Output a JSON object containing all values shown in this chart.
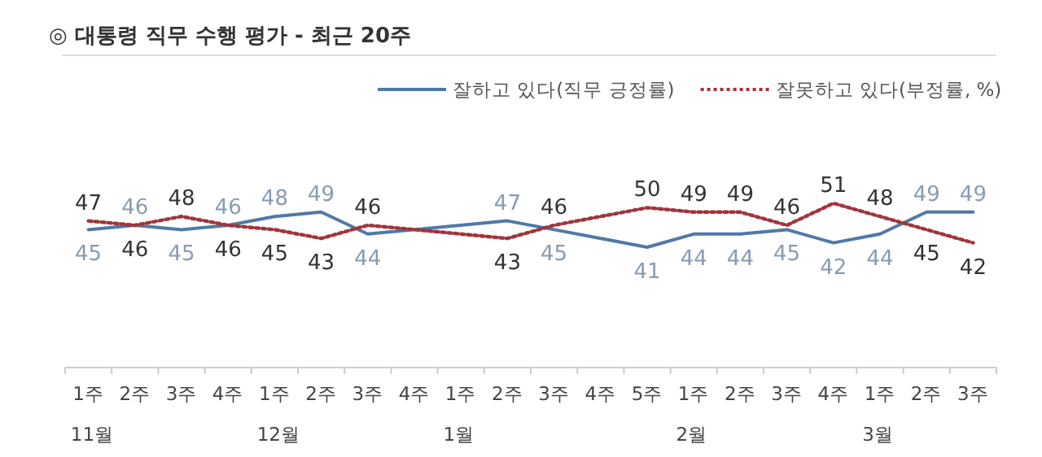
{
  "chart_data": {
    "type": "line",
    "title": "◎ 대통령 직무 수행 평가 - 최근 20주",
    "categories": [
      "1주\n11월",
      "2주",
      "3주",
      "4주",
      "1주\n12월",
      "2주",
      "3주",
      "4주",
      "1주\n1월",
      "2주",
      "3주",
      "4주",
      "5주",
      "1주\n2월",
      "2주",
      "3주",
      "4주",
      "1주\n3월",
      "2주",
      "3주"
    ],
    "series": [
      {
        "name": "잘하고 있다(직무 긍정률)",
        "color": "#4f79a8",
        "line_style": "solid",
        "values": [
          45,
          46,
          45,
          46,
          48,
          49,
          44,
          null,
          null,
          47,
          45,
          null,
          41,
          44,
          44,
          45,
          42,
          44,
          49,
          49
        ]
      },
      {
        "name": "잘못하고 있다(부정률, %)",
        "color": "#a0353c",
        "line_style": "dotted",
        "values": [
          47,
          46,
          48,
          46,
          45,
          43,
          46,
          null,
          null,
          43,
          46,
          null,
          50,
          49,
          49,
          46,
          51,
          48,
          45,
          42
        ]
      }
    ],
    "data_labels": true,
    "legend": "top right"
  }
}
